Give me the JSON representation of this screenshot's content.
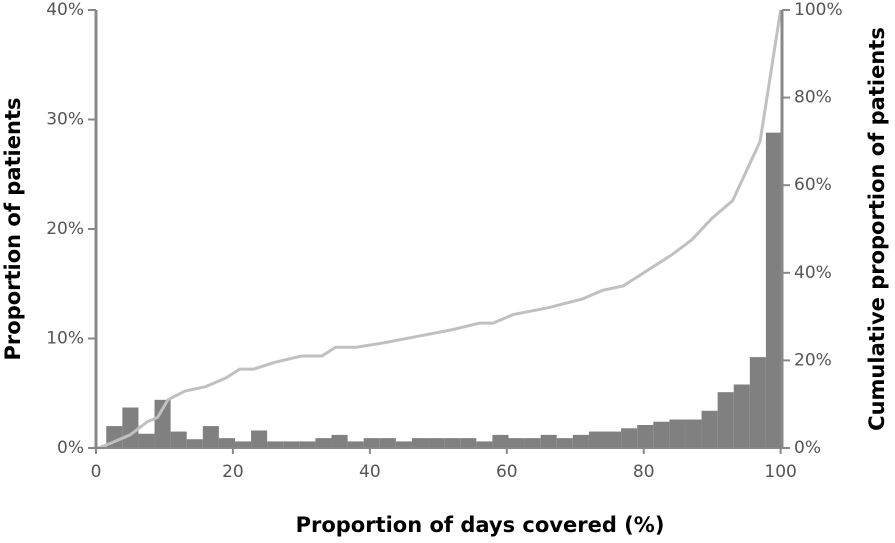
{
  "chart_data": {
    "type": "histogram",
    "x_label": "Proportion of days covered (%)",
    "y_label": "Proportion of patients",
    "y2_label": "Cumulative proportion of patients",
    "bins": [
      1.5,
      3.85,
      6.2,
      8.55,
      10.9,
      13.25,
      15.6,
      17.95,
      20.3,
      22.65,
      25,
      27.35,
      29.7,
      32.05,
      34.4,
      36.75,
      39.1,
      41.45,
      43.8,
      46.15,
      48.5,
      50.85,
      53.2,
      55.55,
      57.9,
      60.25,
      62.6,
      64.95,
      67.3,
      69.65,
      72,
      74.35,
      76.7,
      79.05,
      81.4,
      83.75,
      86.1,
      88.45,
      90.8,
      93.15,
      95.5,
      97.85,
      100.2
    ],
    "values": [
      2.0,
      3.7,
      1.3,
      4.4,
      1.5,
      0.8,
      2.0,
      0.9,
      0.6,
      1.6,
      0.6,
      0.6,
      0.6,
      0.9,
      1.2,
      0.6,
      0.9,
      0.9,
      0.6,
      0.9,
      0.9,
      0.9,
      0.9,
      0.6,
      1.2,
      0.9,
      0.9,
      1.2,
      0.9,
      1.2,
      1.5,
      1.5,
      1.8,
      2.1,
      2.4,
      2.6,
      2.6,
      3.4,
      5.1,
      5.8,
      8.3,
      28.8
    ],
    "color": "#808080",
    "cumulative": {
      "color": "#c0c0c0",
      "axis": "y2",
      "x": [
        0.3,
        2,
        5,
        7.5,
        9,
        10.5,
        13,
        16,
        19,
        21,
        23,
        26,
        30,
        33,
        35,
        38,
        42,
        47,
        52,
        56,
        58,
        61,
        66,
        71,
        74,
        77,
        80,
        84,
        87,
        90,
        93,
        97,
        100
      ],
      "values": [
        0,
        1,
        3,
        6,
        7,
        11,
        13,
        14,
        16,
        18,
        18,
        19.5,
        21,
        21,
        23,
        23,
        24,
        25.5,
        27,
        28.5,
        28.5,
        30.5,
        32,
        34,
        36,
        37,
        40,
        44,
        47.5,
        52.5,
        56.5,
        70,
        100
      ]
    },
    "xlim": [
      0,
      100.2
    ],
    "xticks": [
      0,
      20,
      40,
      60,
      80,
      100
    ],
    "ylim": [
      0,
      40
    ],
    "yticks": [
      {
        "value": 0,
        "label": "0%"
      },
      {
        "value": 10,
        "label": "10%"
      },
      {
        "value": 20,
        "label": "20%"
      },
      {
        "value": 30,
        "label": "30%"
      },
      {
        "value": 40,
        "label": "40%"
      }
    ],
    "y2lim": [
      0,
      100
    ],
    "y2ticks": [
      {
        "value": 0,
        "label": "0%"
      },
      {
        "value": 20,
        "label": "20%"
      },
      {
        "value": 40,
        "label": "40%"
      },
      {
        "value": 60,
        "label": "60%"
      },
      {
        "value": 80,
        "label": "80%"
      },
      {
        "value": 100,
        "label": "100%"
      }
    ]
  }
}
